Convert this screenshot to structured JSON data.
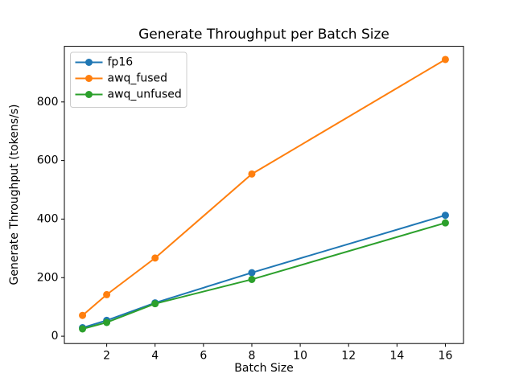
{
  "chart_data": {
    "type": "line",
    "title": "Generate Throughput per Batch Size",
    "xlabel": "Batch Size",
    "ylabel": "Generate Throughput (tokens/s)",
    "x": [
      1,
      2,
      4,
      8,
      16
    ],
    "series": [
      {
        "name": "fp16",
        "color": "#1f77b4",
        "values": [
          29,
          54,
          114,
          217,
          413
        ]
      },
      {
        "name": "awq_fused",
        "color": "#ff7f0e",
        "values": [
          71,
          142,
          267,
          554,
          945
        ]
      },
      {
        "name": "awq_unfused",
        "color": "#2ca02c",
        "values": [
          25,
          47,
          111,
          194,
          387
        ]
      }
    ],
    "xticks": [
      2,
      4,
      6,
      8,
      10,
      12,
      14,
      16
    ],
    "yticks": [
      0,
      200,
      400,
      600,
      800
    ],
    "xlim": [
      0.25,
      16.75
    ],
    "ylim": [
      -25,
      990
    ],
    "grid": false,
    "legend_position": "upper left",
    "marker": "circle",
    "line_width": 2,
    "marker_radius": 4.5,
    "background": "#ffffff",
    "spine_color": "#000000",
    "legend_border_color": "#cccccc",
    "tick_font_px": 14
  }
}
